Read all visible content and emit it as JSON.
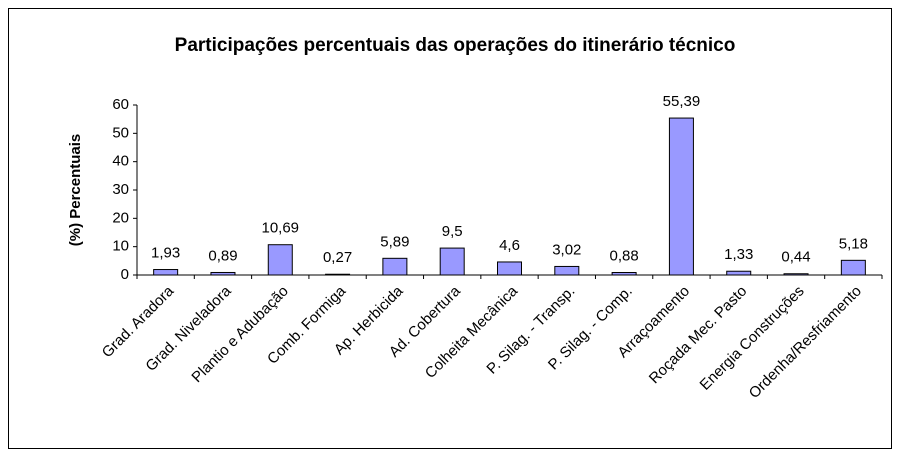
{
  "chart_data": {
    "type": "bar",
    "title": "Participações percentuais das operações do itinerário técnico",
    "y_label": "(%) Percentuais",
    "categories": [
      "Grad. Aradora",
      "Grad. Niveladora",
      "Plantio e Adubação",
      "Comb. Formiga",
      "Ap. Herbicida",
      "Ad. Cobertura",
      "Colheita Mecânica",
      "P. Silag. - Transp.",
      "P. Silag. - Comp.",
      "Arraçoamento",
      "Roçada Mec. Pasto",
      "Energia Construções",
      "Ordenha/Resfriamento"
    ],
    "values": [
      1.93,
      0.89,
      10.69,
      0.27,
      5.89,
      9.5,
      4.6,
      3.02,
      0.88,
      55.39,
      1.33,
      0.44,
      5.18
    ],
    "value_labels": [
      "1,93",
      "0,89",
      "10,69",
      "0,27",
      "5,89",
      "9,5",
      "4,6",
      "3,02",
      "0,88",
      "55,39",
      "1,33",
      "0,44",
      "5,18"
    ],
    "color": "#9999ff",
    "ylim": [
      0,
      60
    ],
    "yticks": [
      0,
      10,
      20,
      30,
      40,
      50,
      60
    ],
    "grid": false
  }
}
